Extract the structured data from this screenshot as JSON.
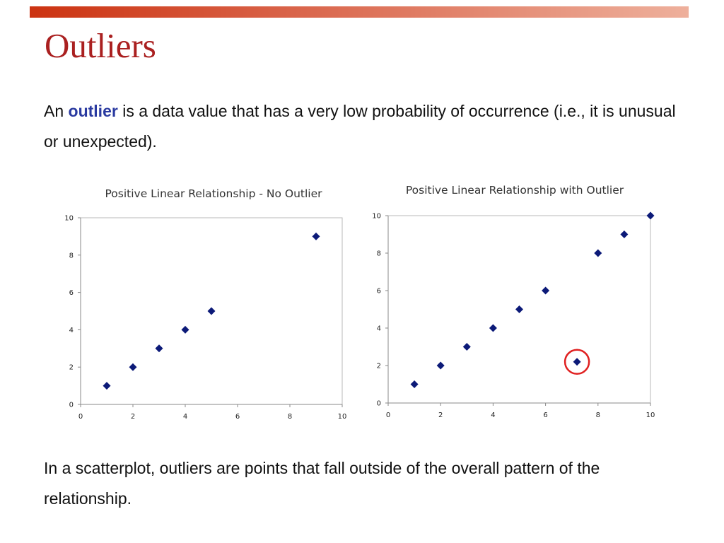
{
  "slide": {
    "title": "Outliers",
    "intro": {
      "prefix": "An ",
      "keyword": "outlier",
      "suffix": " is a data value that has a very low probability of occurrence (i.e., it is unusual or unexpected)."
    },
    "outro": "In a scatterplot, outliers are points that fall outside of the overall pattern of the relationship.",
    "colors": {
      "title": "#aa2020",
      "keyword": "#2a3aa0",
      "point": "#0c1a78",
      "highlight": "#e02020"
    }
  },
  "chart_data": [
    {
      "type": "scatter",
      "title": "Positive Linear Relationship - No Outlier",
      "xlabel": "",
      "ylabel": "",
      "xlim": [
        0,
        10
      ],
      "ylim": [
        0,
        10
      ],
      "xticks": [
        0,
        2,
        4,
        6,
        8,
        10
      ],
      "yticks": [
        0,
        2,
        4,
        6,
        8,
        10
      ],
      "grid": false,
      "legend": "none",
      "points": [
        {
          "x": 1,
          "y": 1
        },
        {
          "x": 2,
          "y": 2
        },
        {
          "x": 3,
          "y": 3
        },
        {
          "x": 4,
          "y": 4
        },
        {
          "x": 5,
          "y": 5
        },
        {
          "x": 9,
          "y": 9
        }
      ]
    },
    {
      "type": "scatter",
      "title": "Positive Linear Relationship with Outlier",
      "xlabel": "",
      "ylabel": "",
      "xlim": [
        0,
        10
      ],
      "ylim": [
        0,
        10
      ],
      "xticks": [
        0,
        2,
        4,
        6,
        8,
        10
      ],
      "yticks": [
        0,
        2,
        4,
        6,
        8,
        10
      ],
      "grid": false,
      "legend": "none",
      "points": [
        {
          "x": 1,
          "y": 1
        },
        {
          "x": 2,
          "y": 2
        },
        {
          "x": 3,
          "y": 3
        },
        {
          "x": 4,
          "y": 4
        },
        {
          "x": 5,
          "y": 5
        },
        {
          "x": 6,
          "y": 6
        },
        {
          "x": 7.2,
          "y": 2.2,
          "highlighted": true
        },
        {
          "x": 8,
          "y": 8
        },
        {
          "x": 9,
          "y": 9
        },
        {
          "x": 10,
          "y": 10
        }
      ]
    }
  ]
}
